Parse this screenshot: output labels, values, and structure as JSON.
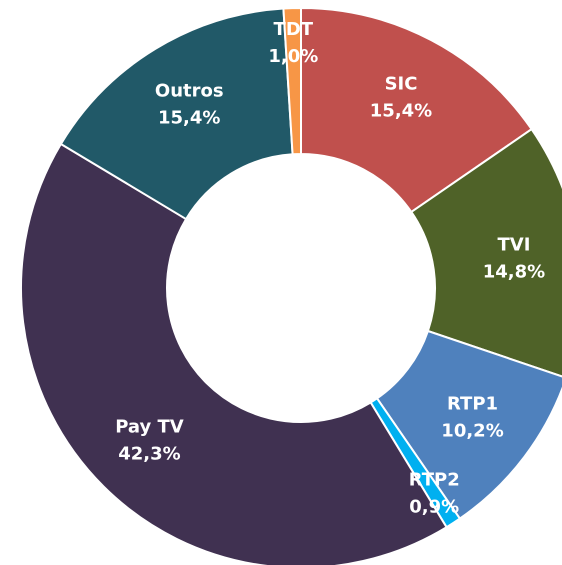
{
  "chart_data": {
    "type": "donut",
    "categories": [
      "SIC",
      "TVI",
      "RTP1",
      "RTP2",
      "Pay TV",
      "Outros",
      "TDT"
    ],
    "values": [
      15.4,
      14.8,
      10.2,
      0.9,
      42.3,
      15.4,
      1.0
    ],
    "value_labels": [
      "15,4%",
      "14,8%",
      "10,2%",
      "0,9%",
      "42,3%",
      "15,4%",
      "1,0%"
    ],
    "colors": [
      "#c0504d",
      "#4f6228",
      "#4f81bd",
      "#00b0f0",
      "#403151",
      "#215968",
      "#f79646"
    ]
  }
}
